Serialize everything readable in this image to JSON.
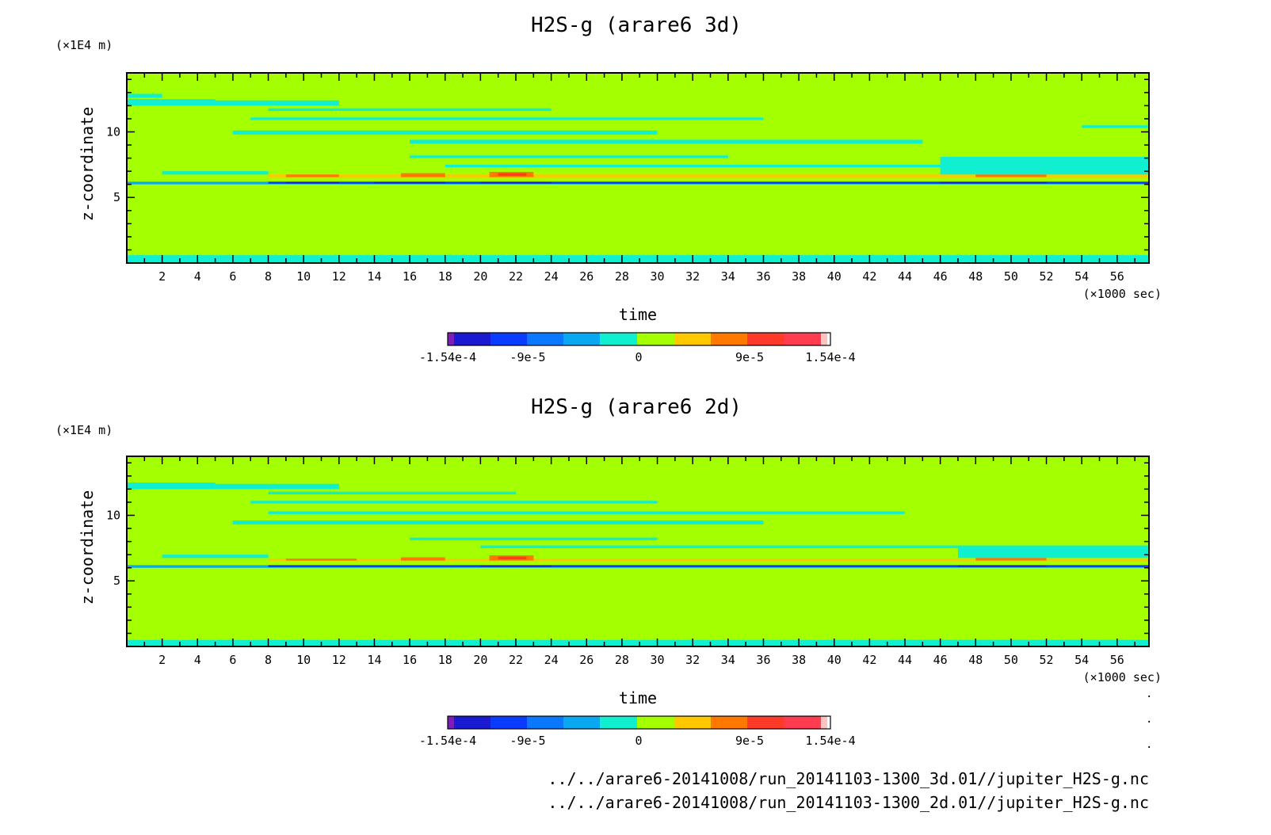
{
  "footer": {
    "files": [
      "../../arare6-20141008/run_20141103-1300_3d.01//jupiter_H2S-g.nc",
      "../../arare6-20141008/run_20141103-1300_2d.01//jupiter_H2S-g.nc"
    ]
  },
  "chart_data": [
    {
      "type": "heatmap",
      "title": "H2S-g (arare6 3d)",
      "xlabel": "time",
      "xunit": "(×1000 sec)",
      "ylabel": "z-coordinate",
      "yunit": "(×1E4 m)",
      "xlim": [
        0,
        57.8
      ],
      "ylim": [
        0,
        14.5
      ],
      "xticks": [
        2,
        4,
        6,
        8,
        10,
        12,
        14,
        16,
        18,
        20,
        22,
        24,
        26,
        28,
        30,
        32,
        34,
        36,
        38,
        40,
        42,
        44,
        46,
        48,
        50,
        52,
        54,
        56
      ],
      "yticks": [
        5,
        10
      ],
      "colorbar": {
        "levels": [
          "-1.54e-4",
          "-9e-5",
          "0",
          "9e-5",
          "1.54e-4"
        ],
        "colors": [
          "#7a1fb8",
          "#1a1ad2",
          "#0a3cff",
          "#0a78ff",
          "#0aa8f0",
          "#10f0d0",
          "#a4ff00",
          "#ffc800",
          "#ff7800",
          "#ff3a28",
          "#ff3c50",
          "#ffc0c0"
        ]
      },
      "bands": [
        {
          "y0": 0,
          "y1": 0.6,
          "x0": 0,
          "x1": 57.8,
          "color": "#10f0d0"
        },
        {
          "y0": 0.6,
          "y1": 0.9,
          "x0": 1,
          "x1": 12,
          "color": "#a4ff00"
        },
        {
          "y0": 1.1,
          "y1": 1.4,
          "x0": 0,
          "x1": 10,
          "color": "#a4ff00"
        },
        {
          "y0": 1.6,
          "y1": 1.9,
          "x0": 2.5,
          "x1": 47,
          "color": "#a4ff00"
        },
        {
          "y0": 2.2,
          "y1": 2.5,
          "x0": 0,
          "x1": 14,
          "color": "#a4ff00"
        },
        {
          "y0": 2.4,
          "y1": 2.8,
          "x0": 16,
          "x1": 40,
          "color": "#a4ff00"
        },
        {
          "y0": 2.9,
          "y1": 3.3,
          "x0": 4,
          "x1": 45,
          "color": "#a4ff00"
        },
        {
          "y0": 3.4,
          "y1": 3.8,
          "x0": 0,
          "x1": 20,
          "color": "#a4ff00"
        },
        {
          "y0": 3.5,
          "y1": 4.0,
          "x0": 43,
          "x1": 57.8,
          "color": "#a4ff00"
        },
        {
          "y0": 4.1,
          "y1": 4.6,
          "x0": 6,
          "x1": 36,
          "color": "#a4ff00"
        },
        {
          "y0": 4.3,
          "y1": 4.8,
          "x0": 36,
          "x1": 52,
          "color": "#a4ff00"
        },
        {
          "y0": 4.8,
          "y1": 5.2,
          "x0": 0,
          "x1": 30,
          "color": "#a4ff00"
        },
        {
          "y0": 5.4,
          "y1": 5.8,
          "x0": 10,
          "x1": 57.8,
          "color": "#a4ff00"
        },
        {
          "y0": 6.0,
          "y1": 6.2,
          "x0": 0,
          "x1": 57.8,
          "color": "#0aa8f0"
        },
        {
          "y0": 6.05,
          "y1": 6.2,
          "x0": 8,
          "x1": 57.8,
          "color": "#0a3cff"
        },
        {
          "y0": 6.08,
          "y1": 6.18,
          "x0": 9,
          "x1": 12,
          "color": "#1a1ad2"
        },
        {
          "y0": 6.08,
          "y1": 6.18,
          "x0": 14,
          "x1": 18,
          "color": "#1a1ad2"
        },
        {
          "y0": 6.08,
          "y1": 6.18,
          "x0": 20,
          "x1": 24,
          "color": "#1a1ad2"
        },
        {
          "y0": 6.08,
          "y1": 6.18,
          "x0": 46,
          "x1": 52,
          "color": "#1a1ad2"
        },
        {
          "y0": 6.5,
          "y1": 6.75,
          "x0": 8,
          "x1": 57.8,
          "color": "#ffc800"
        },
        {
          "y0": 6.55,
          "y1": 6.75,
          "x0": 9,
          "x1": 12,
          "color": "#ff7800"
        },
        {
          "y0": 6.55,
          "y1": 6.85,
          "x0": 15.5,
          "x1": 18,
          "color": "#ff7800"
        },
        {
          "y0": 6.55,
          "y1": 6.95,
          "x0": 20.5,
          "x1": 23,
          "color": "#ff7800"
        },
        {
          "y0": 6.55,
          "y1": 6.9,
          "x0": 48,
          "x1": 52,
          "color": "#ff7800"
        },
        {
          "y0": 6.65,
          "y1": 6.85,
          "x0": 21,
          "x1": 22.6,
          "color": "#ff3a28"
        },
        {
          "y0": 6.75,
          "y1": 7.0,
          "x0": 2,
          "x1": 8,
          "color": "#10f0d0"
        },
        {
          "y0": 6.75,
          "y1": 8.1,
          "x0": 46,
          "x1": 57.8,
          "color": "#10f0d0"
        },
        {
          "y0": 7.3,
          "y1": 7.5,
          "x0": 18,
          "x1": 57.8,
          "color": "#10f0d0"
        },
        {
          "y0": 8.0,
          "y1": 8.2,
          "x0": 16,
          "x1": 34,
          "color": "#10f0d0"
        },
        {
          "y0": 9.1,
          "y1": 9.4,
          "x0": 16,
          "x1": 45,
          "color": "#10f0d0"
        },
        {
          "y0": 9.8,
          "y1": 10.1,
          "x0": 6,
          "x1": 30,
          "color": "#10f0d0"
        },
        {
          "y0": 10.3,
          "y1": 10.5,
          "x0": 54,
          "x1": 57.8,
          "color": "#10f0d0"
        },
        {
          "y0": 10.9,
          "y1": 11.1,
          "x0": 7,
          "x1": 36,
          "color": "#10f0d0"
        },
        {
          "y0": 11.6,
          "y1": 11.8,
          "x0": 8,
          "x1": 24,
          "color": "#10f0d0"
        },
        {
          "y0": 12.0,
          "y1": 12.4,
          "x0": 0,
          "x1": 12,
          "color": "#10f0d0"
        },
        {
          "y0": 12.6,
          "y1": 12.9,
          "x0": 0,
          "x1": 2,
          "color": "#10f0d0"
        },
        {
          "y0": 12.2,
          "y1": 12.5,
          "x0": 0,
          "x1": 5,
          "color": "#10f0d0"
        }
      ]
    },
    {
      "type": "heatmap",
      "title": "H2S-g (arare6 2d)",
      "xlabel": "time",
      "xunit": "(×1000 sec)",
      "ylabel": "z-coordinate",
      "yunit": "(×1E4 m)",
      "xlim": [
        0,
        57.8
      ],
      "ylim": [
        0,
        14.5
      ],
      "xticks": [
        2,
        4,
        6,
        8,
        10,
        12,
        14,
        16,
        18,
        20,
        22,
        24,
        26,
        28,
        30,
        32,
        34,
        36,
        38,
        40,
        42,
        44,
        46,
        48,
        50,
        52,
        54,
        56
      ],
      "yticks": [
        5,
        10
      ],
      "colorbar": {
        "levels": [
          "-1.54e-4",
          "-9e-5",
          "0",
          "9e-5",
          "1.54e-4"
        ],
        "colors": [
          "#7a1fb8",
          "#1a1ad2",
          "#0a3cff",
          "#0a78ff",
          "#0aa8f0",
          "#10f0d0",
          "#a4ff00",
          "#ffc800",
          "#ff7800",
          "#ff3a28",
          "#ff3c50",
          "#ffc0c0"
        ]
      },
      "bands": [
        {
          "y0": 0,
          "y1": 0.5,
          "x0": 0,
          "x1": 57.8,
          "color": "#10f0d0"
        },
        {
          "y0": 0.5,
          "y1": 0.9,
          "x0": 0,
          "x1": 30,
          "color": "#a4ff00"
        },
        {
          "y0": 0.5,
          "y1": 1.2,
          "x0": 30,
          "x1": 44,
          "color": "#a4ff00"
        },
        {
          "y0": 1.1,
          "y1": 1.4,
          "x0": 0,
          "x1": 14,
          "color": "#a4ff00"
        },
        {
          "y0": 1.4,
          "y1": 1.8,
          "x0": 52,
          "x1": 57.8,
          "color": "#a4ff00"
        },
        {
          "y0": 1.6,
          "y1": 2.1,
          "x0": 2,
          "x1": 50,
          "color": "#a4ff00"
        },
        {
          "y0": 2.3,
          "y1": 2.7,
          "x0": 0,
          "x1": 14,
          "color": "#a4ff00"
        },
        {
          "y0": 2.6,
          "y1": 3.0,
          "x0": 18,
          "x1": 48,
          "color": "#a4ff00"
        },
        {
          "y0": 2.9,
          "y1": 3.3,
          "x0": 3,
          "x1": 16,
          "color": "#a4ff00"
        },
        {
          "y0": 3.4,
          "y1": 3.8,
          "x0": 0,
          "x1": 22,
          "color": "#a4ff00"
        },
        {
          "y0": 3.6,
          "y1": 4.0,
          "x0": 44,
          "x1": 57.8,
          "color": "#a4ff00"
        },
        {
          "y0": 4.1,
          "y1": 4.6,
          "x0": 8,
          "x1": 38,
          "color": "#a4ff00"
        },
        {
          "y0": 4.4,
          "y1": 4.9,
          "x0": 38,
          "x1": 52,
          "color": "#a4ff00"
        },
        {
          "y0": 4.9,
          "y1": 5.3,
          "x0": 0,
          "x1": 26,
          "color": "#a4ff00"
        },
        {
          "y0": 5.5,
          "y1": 5.8,
          "x0": 12,
          "x1": 57.8,
          "color": "#a4ff00"
        },
        {
          "y0": 6.0,
          "y1": 6.2,
          "x0": 0,
          "x1": 57.8,
          "color": "#0aa8f0"
        },
        {
          "y0": 6.05,
          "y1": 6.2,
          "x0": 8,
          "x1": 57.8,
          "color": "#0a3cff"
        },
        {
          "y0": 6.08,
          "y1": 6.18,
          "x0": 20,
          "x1": 24,
          "color": "#1a1ad2"
        },
        {
          "y0": 6.08,
          "y1": 6.18,
          "x0": 47,
          "x1": 52,
          "color": "#1a1ad2"
        },
        {
          "y0": 6.5,
          "y1": 6.7,
          "x0": 8,
          "x1": 57.8,
          "color": "#ffc800"
        },
        {
          "y0": 6.55,
          "y1": 6.7,
          "x0": 9,
          "x1": 13,
          "color": "#ff7800"
        },
        {
          "y0": 6.55,
          "y1": 6.8,
          "x0": 15.5,
          "x1": 18,
          "color": "#ff7800"
        },
        {
          "y0": 6.55,
          "y1": 6.95,
          "x0": 20.5,
          "x1": 23,
          "color": "#ff7800"
        },
        {
          "y0": 6.55,
          "y1": 6.85,
          "x0": 48,
          "x1": 52,
          "color": "#ff7800"
        },
        {
          "y0": 6.65,
          "y1": 6.85,
          "x0": 21,
          "x1": 22.6,
          "color": "#ff3a28"
        },
        {
          "y0": 6.75,
          "y1": 7.0,
          "x0": 2,
          "x1": 8,
          "color": "#10f0d0"
        },
        {
          "y0": 6.75,
          "y1": 7.6,
          "x0": 47,
          "x1": 57.8,
          "color": "#10f0d0"
        },
        {
          "y0": 7.5,
          "y1": 7.7,
          "x0": 20,
          "x1": 57.8,
          "color": "#10f0d0"
        },
        {
          "y0": 8.1,
          "y1": 8.3,
          "x0": 16,
          "x1": 30,
          "color": "#10f0d0"
        },
        {
          "y0": 9.3,
          "y1": 9.6,
          "x0": 6,
          "x1": 36,
          "color": "#10f0d0"
        },
        {
          "y0": 10.1,
          "y1": 10.3,
          "x0": 8,
          "x1": 44,
          "color": "#10f0d0"
        },
        {
          "y0": 10.9,
          "y1": 11.1,
          "x0": 7,
          "x1": 30,
          "color": "#10f0d0"
        },
        {
          "y0": 11.6,
          "y1": 11.8,
          "x0": 8,
          "x1": 22,
          "color": "#10f0d0"
        },
        {
          "y0": 12.0,
          "y1": 12.4,
          "x0": 0,
          "x1": 12,
          "color": "#10f0d0"
        },
        {
          "y0": 12.2,
          "y1": 12.5,
          "x0": 0,
          "x1": 5,
          "color": "#10f0d0"
        }
      ]
    }
  ]
}
